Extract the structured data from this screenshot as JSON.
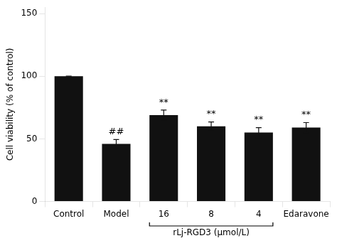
{
  "chart_data": {
    "type": "bar",
    "categories": [
      "Control",
      "Model",
      "16",
      "8",
      "4",
      "Edaravone"
    ],
    "values": [
      100,
      46,
      69,
      60,
      55,
      59
    ],
    "errors": [
      0,
      3.5,
      4.0,
      3.5,
      4.0,
      4.0
    ],
    "color": "#111111",
    "ylabel": "Cell viability (% of control)",
    "ylim": [
      0,
      155
    ],
    "yticks": [
      0,
      50,
      100,
      150
    ],
    "grid": false,
    "annotations": [
      {
        "category": "Model",
        "text": "##"
      },
      {
        "category": "16",
        "text": "**"
      },
      {
        "category": "8",
        "text": "**"
      },
      {
        "category": "4",
        "text": "**"
      },
      {
        "category": "Edaravone",
        "text": "**"
      },
      {
        "categories": [
          "16",
          "8",
          "4"
        ],
        "text": "rLj-RGD3 (μmol/L)"
      }
    ]
  }
}
